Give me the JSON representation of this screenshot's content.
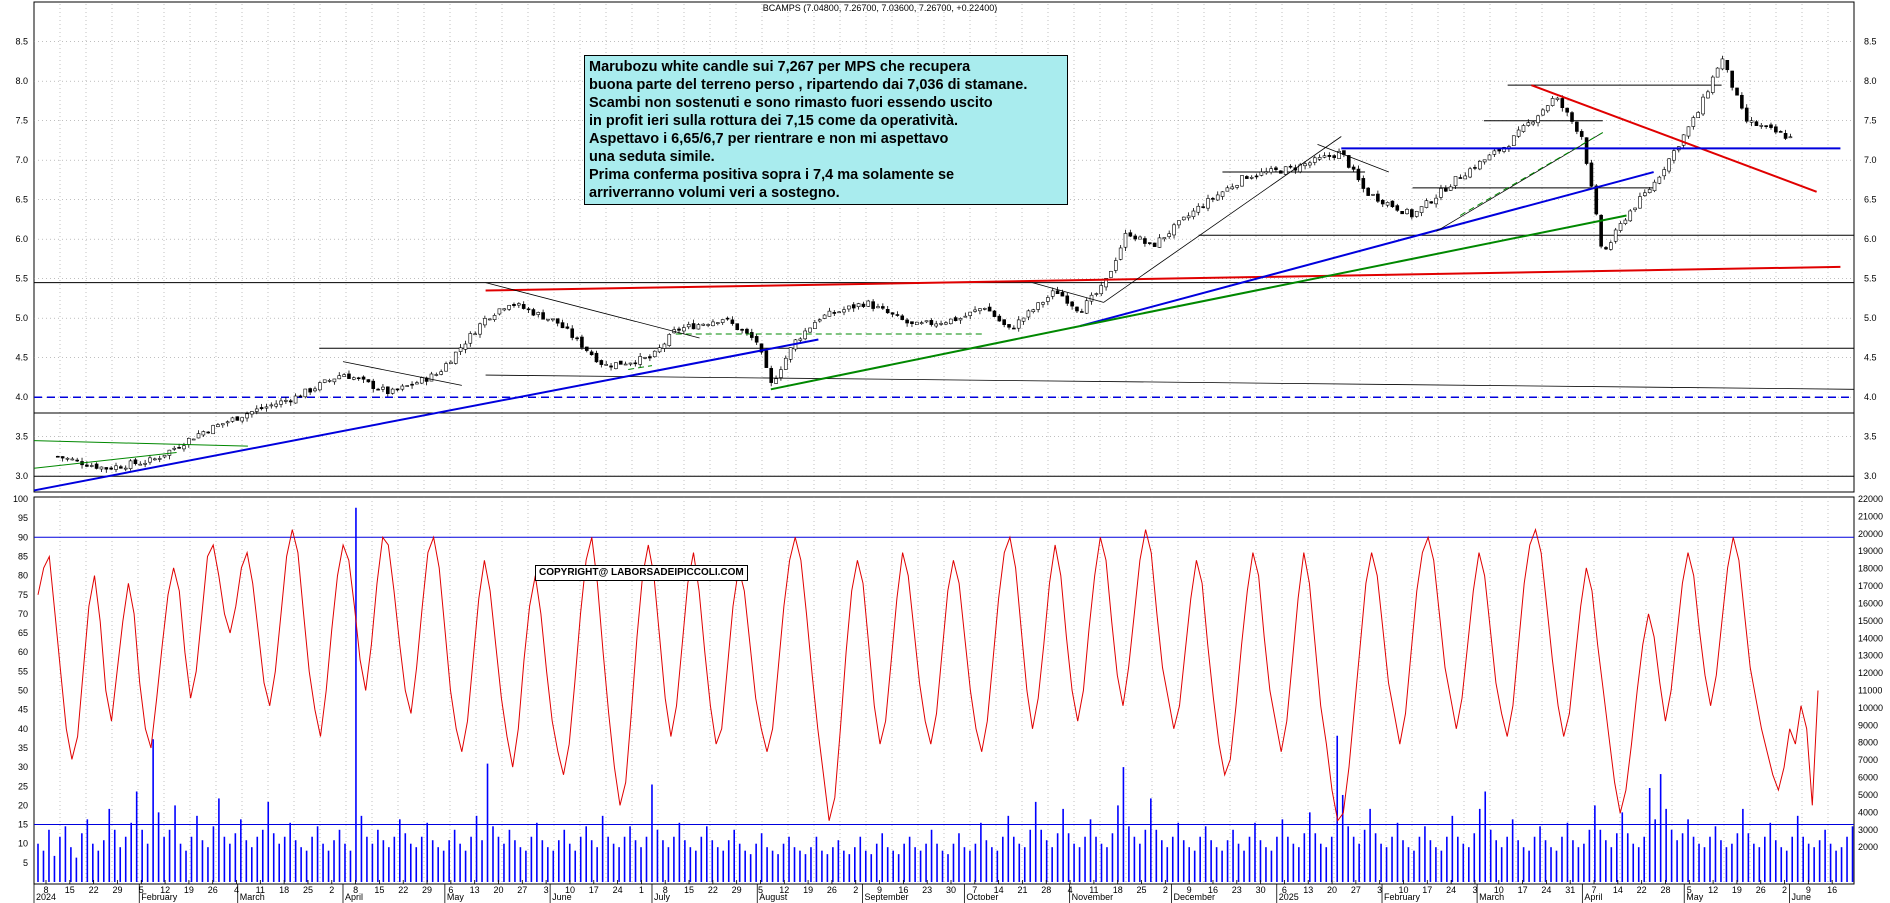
{
  "title": "BCAMPS (7.04800, 7.26700, 7.03600, 7.26700, +0.22400)",
  "annotation_lines": [
    "Marubozu white candle sui 7,267 per MPS che recupera",
    "buona parte del terreno perso , ripartendo dai 7,036 di stamane.",
    "Scambi non sostenuti e sono rimasto fuori essendo uscito",
    "in profit ieri sulla rottura dei 7,15 come da operatività.",
    "Aspettavo i 6,65/6,7 per rientrare e non mi aspettavo",
    "una seduta simile.",
    "Prima conferma positiva sopra i 7,4 ma solamente se",
    "arriverranno volumi veri a sostegno."
  ],
  "copyright": "COPYRIGHT@ LABORSADEIPICCOLI.COM",
  "colors": {
    "up": "#ffffff",
    "down": "#000000",
    "red": "#e00000",
    "blue": "#0000dd",
    "green": "#008800",
    "volume": "#0000ff"
  },
  "chart_data": [
    {
      "type": "candlestick",
      "symbol": "BCAMPS",
      "last": {
        "open": 7.048,
        "high": 7.267,
        "low": 7.036,
        "close": 7.267,
        "change": 0.224
      },
      "ylim": [
        2.8,
        8.8
      ],
      "yticks": [
        "3.0",
        "3.5",
        "4.0",
        "4.5",
        "5.0",
        "5.5",
        "6.0",
        "6.5",
        "7.0",
        "7.5",
        "8.0",
        "8.5"
      ],
      "x_day_labels": [
        "8",
        "15",
        "22",
        "29",
        "5",
        "12",
        "19",
        "26",
        "4",
        "11",
        "18",
        "25",
        "2",
        "8",
        "15",
        "22",
        "29",
        "6",
        "13",
        "20",
        "27",
        "3",
        "10",
        "17",
        "24",
        "1",
        "8",
        "15",
        "22",
        "29",
        "5",
        "12",
        "19",
        "26",
        "2",
        "9",
        "16",
        "23",
        "30",
        "7",
        "14",
        "21",
        "28",
        "4",
        "11",
        "18",
        "25",
        "2",
        "9",
        "16",
        "23",
        "30",
        "6",
        "13",
        "20",
        "27",
        "3",
        "10",
        "17",
        "24",
        "3",
        "10",
        "17",
        "24",
        "31",
        "7",
        "14",
        "22",
        "28",
        "5",
        "12",
        "19",
        "26",
        "2",
        "9",
        "16"
      ],
      "x_month_labels": [
        "2024",
        "February",
        "March",
        "April",
        "May",
        "June",
        "July",
        "August",
        "September",
        "October",
        "November",
        "December",
        "2025",
        "February",
        "March",
        "April",
        "May",
        "June"
      ],
      "close_path_points": [
        [
          "2024-01-08",
          3.25
        ],
        [
          "2024-01-22",
          3.1
        ],
        [
          "2024-02-05",
          3.2
        ],
        [
          "2024-02-19",
          3.55
        ],
        [
          "2024-03-04",
          3.8
        ],
        [
          "2024-03-18",
          4.0
        ],
        [
          "2024-04-01",
          4.3
        ],
        [
          "2024-04-15",
          4.05
        ],
        [
          "2024-04-29",
          4.3
        ],
        [
          "2024-05-13",
          5.0
        ],
        [
          "2024-05-20",
          5.2
        ],
        [
          "2024-06-03",
          4.95
        ],
        [
          "2024-06-17",
          4.4
        ],
        [
          "2024-07-01",
          4.5
        ],
        [
          "2024-07-08",
          4.85
        ],
        [
          "2024-07-22",
          5.0
        ],
        [
          "2024-08-01",
          4.7
        ],
        [
          "2024-08-05",
          4.15
        ],
        [
          "2024-08-12",
          4.7
        ],
        [
          "2024-08-19",
          5.0
        ],
        [
          "2024-09-02",
          5.2
        ],
        [
          "2024-09-16",
          4.9
        ],
        [
          "2024-09-30",
          5.0
        ],
        [
          "2024-10-07",
          5.15
        ],
        [
          "2024-10-14",
          4.85
        ],
        [
          "2024-10-28",
          5.35
        ],
        [
          "2024-11-04",
          5.1
        ],
        [
          "2024-11-11",
          5.4
        ],
        [
          "2024-11-18",
          6.1
        ],
        [
          "2024-11-25",
          5.9
        ],
        [
          "2024-12-09",
          6.4
        ],
        [
          "2024-12-23",
          6.8
        ],
        [
          "2025-01-06",
          6.9
        ],
        [
          "2025-01-20",
          7.1
        ],
        [
          "2025-01-27",
          6.6
        ],
        [
          "2025-02-10",
          6.3
        ],
        [
          "2025-02-24",
          6.8
        ],
        [
          "2025-03-10",
          7.2
        ],
        [
          "2025-03-24",
          7.8
        ],
        [
          "2025-04-01",
          7.3
        ],
        [
          "2025-04-07",
          5.8
        ],
        [
          "2025-04-14",
          6.3
        ],
        [
          "2025-04-22",
          6.7
        ],
        [
          "2025-05-05",
          7.6
        ],
        [
          "2025-05-12",
          8.3
        ],
        [
          "2025-05-19",
          7.5
        ],
        [
          "2025-06-02",
          7.27
        ]
      ],
      "trendlines": [
        {
          "color": "red",
          "from": [
            "2024-05-13",
            5.35
          ],
          "to": [
            "2025-06-16",
            5.65
          ]
        },
        {
          "color": "red",
          "from": [
            "2025-03-17",
            7.95
          ],
          "to": [
            "2025-06-09",
            6.6
          ]
        },
        {
          "color": "blue",
          "from": [
            "2024-01-01",
            2.82
          ],
          "to": [
            "2024-08-19",
            4.73
          ]
        },
        {
          "color": "blue",
          "from": [
            "2024-11-04",
            4.9
          ],
          "to": [
            "2025-04-22",
            6.85
          ]
        },
        {
          "color": "green",
          "from": [
            "2024-08-05",
            4.1
          ],
          "to": [
            "2024-11-04",
            4.9
          ]
        },
        {
          "color": "green",
          "from": [
            "2024-11-04",
            4.9
          ],
          "to": [
            "2025-04-14",
            6.3
          ]
        },
        {
          "color": "blue",
          "from": [
            "2025-01-20",
            7.15
          ],
          "to": [
            "2025-06-16",
            7.15
          ]
        }
      ],
      "horizontal_levels": [
        3.0,
        3.8,
        4.0,
        4.62,
        5.45,
        6.05,
        6.65,
        6.85,
        7.5,
        7.95
      ]
    },
    {
      "type": "line",
      "name": "oscillator",
      "ylim": [
        0,
        100
      ],
      "yticks": [
        "5",
        "10",
        "15",
        "20",
        "25",
        "30",
        "35",
        "40",
        "45",
        "50",
        "55",
        "60",
        "65",
        "70",
        "75",
        "80",
        "85",
        "90",
        "95",
        "100"
      ],
      "levels": [
        15,
        90
      ],
      "values": [
        75,
        82,
        85,
        70,
        55,
        40,
        32,
        38,
        55,
        72,
        80,
        68,
        50,
        42,
        55,
        68,
        78,
        70,
        52,
        40,
        35,
        48,
        62,
        75,
        82,
        76,
        60,
        48,
        55,
        70,
        85,
        88,
        80,
        70,
        65,
        72,
        82,
        86,
        78,
        65,
        52,
        46,
        55,
        70,
        85,
        92,
        86,
        70,
        55,
        45,
        38,
        50,
        66,
        80,
        88,
        84,
        72,
        58,
        50,
        62,
        78,
        90,
        88,
        76,
        62,
        50,
        44,
        56,
        72,
        86,
        90,
        82,
        66,
        50,
        40,
        34,
        42,
        58,
        74,
        84,
        76,
        62,
        48,
        38,
        30,
        40,
        58,
        72,
        80,
        70,
        55,
        42,
        34,
        28,
        36,
        52,
        70,
        84,
        90,
        78,
        60,
        44,
        30,
        20,
        26,
        44,
        64,
        80,
        88,
        80,
        64,
        48,
        38,
        46,
        62,
        78,
        86,
        76,
        60,
        46,
        36,
        40,
        56,
        72,
        82,
        76,
        62,
        48,
        40,
        34,
        40,
        56,
        72,
        84,
        90,
        84,
        70,
        54,
        40,
        28,
        16,
        22,
        40,
        60,
        76,
        84,
        78,
        62,
        46,
        36,
        42,
        58,
        74,
        86,
        80,
        66,
        52,
        42,
        36,
        44,
        60,
        76,
        84,
        78,
        64,
        50,
        40,
        34,
        42,
        58,
        74,
        86,
        90,
        82,
        66,
        50,
        40,
        48,
        62,
        78,
        88,
        80,
        64,
        50,
        42,
        50,
        66,
        80,
        90,
        84,
        68,
        54,
        46,
        56,
        70,
        84,
        92,
        86,
        70,
        56,
        48,
        40,
        46,
        60,
        74,
        84,
        78,
        62,
        48,
        36,
        28,
        32,
        46,
        62,
        76,
        86,
        80,
        64,
        50,
        42,
        34,
        42,
        58,
        74,
        86,
        78,
        62,
        46,
        36,
        24,
        16,
        18,
        30,
        46,
        62,
        78,
        86,
        80,
        66,
        52,
        44,
        36,
        44,
        60,
        76,
        86,
        90,
        84,
        70,
        56,
        48,
        40,
        48,
        62,
        76,
        86,
        80,
        66,
        52,
        44,
        38,
        46,
        62,
        78,
        88,
        92,
        86,
        72,
        58,
        46,
        38,
        44,
        58,
        72,
        82,
        76,
        62,
        50,
        38,
        26,
        18,
        24,
        36,
        50,
        62,
        70,
        64,
        52,
        42,
        50,
        64,
        78,
        86,
        80,
        66,
        54,
        46,
        54,
        68,
        82,
        90,
        84,
        70,
        56,
        48,
        40,
        34,
        28,
        24,
        30,
        40,
        36,
        46,
        40,
        20,
        50
      ]
    },
    {
      "type": "bar",
      "name": "volume",
      "ylim": [
        0,
        22000
      ],
      "yticks": [
        "2000",
        "3000",
        "4000",
        "5000",
        "6000",
        "7000",
        "8000",
        "9000",
        "10000",
        "11000",
        "12000",
        "13000",
        "14000",
        "15000",
        "16000",
        "17000",
        "18000",
        "19000",
        "20000",
        "21000",
        "22000"
      ],
      "values": [
        2200,
        1800,
        3000,
        1500,
        2600,
        3200,
        2000,
        1400,
        2800,
        3600,
        2200,
        1800,
        2400,
        4200,
        3000,
        2000,
        2600,
        3400,
        5200,
        3000,
        2200,
        8200,
        4000,
        2600,
        3000,
        4400,
        2200,
        1800,
        2600,
        3800,
        2400,
        2000,
        3200,
        4800,
        2600,
        2200,
        2800,
        3600,
        2400,
        2000,
        2600,
        3000,
        4600,
        2800,
        2200,
        2600,
        3400,
        2400,
        2000,
        1800,
        2600,
        3200,
        2200,
        1800,
        2400,
        3000,
        2200,
        1800,
        21500,
        3800,
        2600,
        2200,
        3000,
        2400,
        2000,
        2600,
        3600,
        2800,
        2200,
        2000,
        2600,
        3400,
        2400,
        2000,
        1800,
        2400,
        3000,
        2200,
        1800,
        2600,
        3800,
        2400,
        6800,
        3200,
        2600,
        2200,
        3000,
        2400,
        2000,
        1800,
        2600,
        3400,
        2400,
        2000,
        1800,
        2400,
        3000,
        2200,
        1800,
        2600,
        3200,
        2400,
        2000,
        3800,
        2600,
        2200,
        2000,
        2600,
        3200,
        2400,
        2000,
        2600,
        5600,
        3000,
        2400,
        2000,
        2600,
        3400,
        2400,
        2000,
        1800,
        2600,
        3200,
        2400,
        2000,
        1800,
        2400,
        3000,
        2200,
        1800,
        1600,
        2200,
        2800,
        2000,
        1800,
        1600,
        2200,
        2600,
        2000,
        1800,
        1600,
        2000,
        2600,
        1800,
        1600,
        2000,
        2400,
        1800,
        1600,
        2000,
        2600,
        1800,
        1600,
        2200,
        2800,
        2000,
        1800,
        1600,
        2200,
        2600,
        2000,
        1800,
        2200,
        3000,
        2200,
        1800,
        1600,
        2200,
        2800,
        2000,
        1800,
        2200,
        3400,
        2400,
        2000,
        1800,
        2600,
        3800,
        2600,
        2200,
        2000,
        3000,
        4600,
        3000,
        2400,
        2000,
        2800,
        4200,
        2800,
        2200,
        2000,
        2600,
        3600,
        2600,
        2200,
        2000,
        2800,
        4400,
        6600,
        3200,
        2600,
        2200,
        3000,
        4800,
        3000,
        2400,
        2000,
        2600,
        3400,
        2400,
        2000,
        1800,
        2600,
        3200,
        2400,
        2000,
        1800,
        2400,
        3000,
        2200,
        1800,
        2600,
        3400,
        2400,
        2000,
        1800,
        2600,
        3600,
        2600,
        2200,
        2000,
        2800,
        4000,
        2800,
        2200,
        2000,
        2600,
        8400,
        5000,
        3200,
        2600,
        2200,
        3000,
        4200,
        2800,
        2200,
        2000,
        2600,
        3400,
        2400,
        2000,
        1800,
        2600,
        3200,
        2400,
        2000,
        1800,
        2600,
        3800,
        2600,
        2200,
        2000,
        2800,
        4200,
        5200,
        3000,
        2400,
        2000,
        2600,
        3600,
        2400,
        2000,
        1800,
        2600,
        3200,
        2400,
        2000,
        1800,
        2600,
        3400,
        2400,
        2000,
        2200,
        3000,
        4400,
        3000,
        2400,
        2000,
        2800,
        4000,
        2800,
        2200,
        2000,
        2600,
        5400,
        3600,
        6200,
        4200,
        3000,
        2400,
        2800,
        3600,
        2600,
        2200,
        2000,
        2600,
        3200,
        2400,
        2000,
        2200,
        2800,
        4200,
        2800,
        2200,
        2000,
        2600,
        3400,
        2400,
        2000,
        1800,
        2600,
        3800,
        2600,
        2200,
        2000,
        2400,
        3000,
        2200,
        1800,
        2000,
        2600,
        3200
      ]
    }
  ]
}
